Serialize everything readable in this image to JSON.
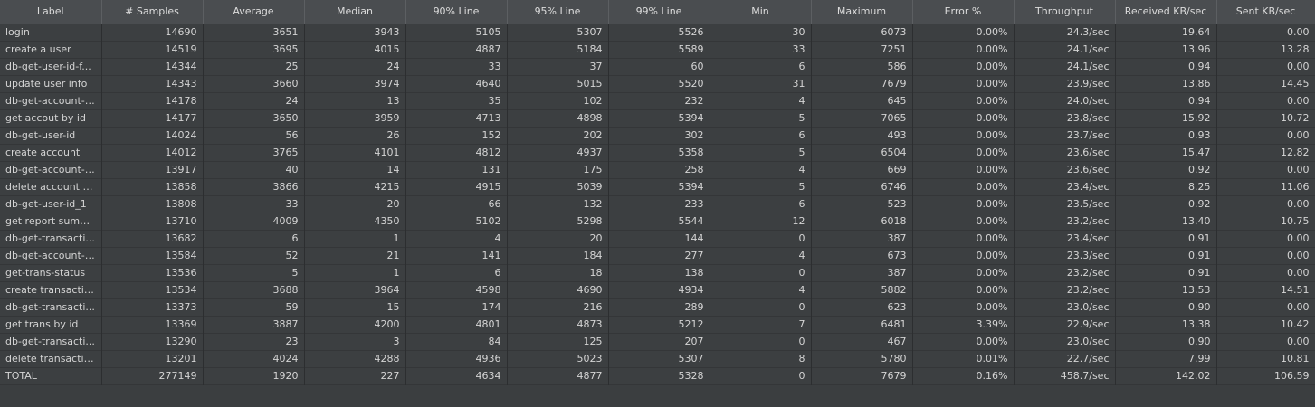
{
  "columns": [
    "Label",
    "# Samples",
    "Average",
    "Median",
    "90% Line",
    "95% Line",
    "99% Line",
    "Min",
    "Maximum",
    "Error %",
    "Throughput",
    "Received KB/sec",
    "Sent KB/sec"
  ],
  "rows": [
    [
      "login",
      "14690",
      "3651",
      "3943",
      "5105",
      "5307",
      "5526",
      "30",
      "6073",
      "0.00%",
      "24.3/sec",
      "19.64",
      "0.00"
    ],
    [
      "create a user",
      "14519",
      "3695",
      "4015",
      "4887",
      "5184",
      "5589",
      "33",
      "7251",
      "0.00%",
      "24.1/sec",
      "13.96",
      "13.28"
    ],
    [
      "db-get-user-id-f...",
      "14344",
      "25",
      "24",
      "33",
      "37",
      "60",
      "6",
      "586",
      "0.00%",
      "24.1/sec",
      "0.94",
      "0.00"
    ],
    [
      "update user info",
      "14343",
      "3660",
      "3974",
      "4640",
      "5015",
      "5520",
      "31",
      "7679",
      "0.00%",
      "23.9/sec",
      "13.86",
      "14.45"
    ],
    [
      "db-get-account-i...",
      "14178",
      "24",
      "13",
      "35",
      "102",
      "232",
      "4",
      "645",
      "0.00%",
      "24.0/sec",
      "0.94",
      "0.00"
    ],
    [
      "get accout by id",
      "14177",
      "3650",
      "3959",
      "4713",
      "4898",
      "5394",
      "5",
      "7065",
      "0.00%",
      "23.8/sec",
      "15.92",
      "10.72"
    ],
    [
      "db-get-user-id",
      "14024",
      "56",
      "26",
      "152",
      "202",
      "302",
      "6",
      "493",
      "0.00%",
      "23.7/sec",
      "0.93",
      "0.00"
    ],
    [
      "create account",
      "14012",
      "3765",
      "4101",
      "4812",
      "4937",
      "5358",
      "5",
      "6504",
      "0.00%",
      "23.6/sec",
      "15.47",
      "12.82"
    ],
    [
      "db-get-account-i...",
      "13917",
      "40",
      "14",
      "131",
      "175",
      "258",
      "4",
      "669",
      "0.00%",
      "23.6/sec",
      "0.92",
      "0.00"
    ],
    [
      "delete account b...",
      "13858",
      "3866",
      "4215",
      "4915",
      "5039",
      "5394",
      "5",
      "6746",
      "0.00%",
      "23.4/sec",
      "8.25",
      "11.06"
    ],
    [
      "db-get-user-id_1",
      "13808",
      "33",
      "20",
      "66",
      "132",
      "233",
      "6",
      "523",
      "0.00%",
      "23.5/sec",
      "0.92",
      "0.00"
    ],
    [
      "get report summ...",
      "13710",
      "4009",
      "4350",
      "5102",
      "5298",
      "5544",
      "12",
      "6018",
      "0.00%",
      "23.2/sec",
      "13.40",
      "10.75"
    ],
    [
      "db-get-transacti...",
      "13682",
      "6",
      "1",
      "4",
      "20",
      "144",
      "0",
      "387",
      "0.00%",
      "23.4/sec",
      "0.91",
      "0.00"
    ],
    [
      "db-get-account-i...",
      "13584",
      "52",
      "21",
      "141",
      "184",
      "277",
      "4",
      "673",
      "0.00%",
      "23.3/sec",
      "0.91",
      "0.00"
    ],
    [
      "get-trans-status",
      "13536",
      "5",
      "1",
      "6",
      "18",
      "138",
      "0",
      "387",
      "0.00%",
      "23.2/sec",
      "0.91",
      "0.00"
    ],
    [
      "create transaction",
      "13534",
      "3688",
      "3964",
      "4598",
      "4690",
      "4934",
      "4",
      "5882",
      "0.00%",
      "23.2/sec",
      "13.53",
      "14.51"
    ],
    [
      "db-get-transacti...",
      "13373",
      "59",
      "15",
      "174",
      "216",
      "289",
      "0",
      "623",
      "0.00%",
      "23.0/sec",
      "0.90",
      "0.00"
    ],
    [
      "get trans by id",
      "13369",
      "3887",
      "4200",
      "4801",
      "4873",
      "5212",
      "7",
      "6481",
      "3.39%",
      "22.9/sec",
      "13.38",
      "10.42"
    ],
    [
      "db-get-transacti...",
      "13290",
      "23",
      "3",
      "84",
      "125",
      "207",
      "0",
      "467",
      "0.00%",
      "23.0/sec",
      "0.90",
      "0.00"
    ],
    [
      "delete transactio...",
      "13201",
      "4024",
      "4288",
      "4936",
      "5023",
      "5307",
      "8",
      "5780",
      "0.01%",
      "22.7/sec",
      "7.99",
      "10.81"
    ]
  ],
  "total": [
    "TOTAL",
    "277149",
    "1920",
    "227",
    "4634",
    "4877",
    "5328",
    "0",
    "7679",
    "0.16%",
    "458.7/sec",
    "142.02",
    "106.59"
  ]
}
